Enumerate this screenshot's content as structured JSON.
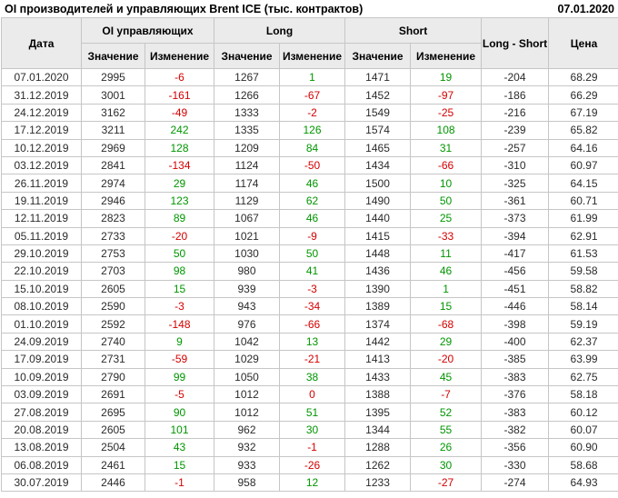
{
  "report": {
    "title": "OI производителей и управляющих Brent ICE (тыс. контрактов)",
    "as_of_date": "07.01.2020"
  },
  "colors": {
    "positive_change": "#009600",
    "negative_change": "#d40000",
    "header_background": "#ebebeb",
    "grid_border": "#c6c6c6"
  },
  "chart_data": {
    "type": "table",
    "title": "OI производителей и управляющих Brent ICE (тыс. контрактов)",
    "as_of_date": "07.01.2020",
    "headers": {
      "date": "Дата",
      "oi_group": "OI управляющих",
      "long_group": "Long",
      "short_group": "Short",
      "long_short": "Long - Short",
      "price": "Цена",
      "value": "Значение",
      "change": "Изменение"
    },
    "columns": [
      "Дата",
      "OI управляющих / Значение",
      "OI управляющих / Изменение",
      "Long / Значение",
      "Long / Изменение",
      "Short / Значение",
      "Short / Изменение",
      "Long - Short",
      "Цена"
    ],
    "rows": [
      [
        "07.01.2020",
        "2995",
        "-6",
        "1267",
        "1",
        "1471",
        "19",
        "-204",
        "68.29"
      ],
      [
        "31.12.2019",
        "3001",
        "-161",
        "1266",
        "-67",
        "1452",
        "-97",
        "-186",
        "66.29"
      ],
      [
        "24.12.2019",
        "3162",
        "-49",
        "1333",
        "-2",
        "1549",
        "-25",
        "-216",
        "67.19"
      ],
      [
        "17.12.2019",
        "3211",
        "242",
        "1335",
        "126",
        "1574",
        "108",
        "-239",
        "65.82"
      ],
      [
        "10.12.2019",
        "2969",
        "128",
        "1209",
        "84",
        "1465",
        "31",
        "-257",
        "64.16"
      ],
      [
        "03.12.2019",
        "2841",
        "-134",
        "1124",
        "-50",
        "1434",
        "-66",
        "-310",
        "60.97"
      ],
      [
        "26.11.2019",
        "2974",
        "29",
        "1174",
        "46",
        "1500",
        "10",
        "-325",
        "64.15"
      ],
      [
        "19.11.2019",
        "2946",
        "123",
        "1129",
        "62",
        "1490",
        "50",
        "-361",
        "60.71"
      ],
      [
        "12.11.2019",
        "2823",
        "89",
        "1067",
        "46",
        "1440",
        "25",
        "-373",
        "61.99"
      ],
      [
        "05.11.2019",
        "2733",
        "-20",
        "1021",
        "-9",
        "1415",
        "-33",
        "-394",
        "62.91"
      ],
      [
        "29.10.2019",
        "2753",
        "50",
        "1030",
        "50",
        "1448",
        "11",
        "-417",
        "61.53"
      ],
      [
        "22.10.2019",
        "2703",
        "98",
        "980",
        "41",
        "1436",
        "46",
        "-456",
        "59.58"
      ],
      [
        "15.10.2019",
        "2605",
        "15",
        "939",
        "-3",
        "1390",
        "1",
        "-451",
        "58.82"
      ],
      [
        "08.10.2019",
        "2590",
        "-3",
        "943",
        "-34",
        "1389",
        "15",
        "-446",
        "58.14"
      ],
      [
        "01.10.2019",
        "2592",
        "-148",
        "976",
        "-66",
        "1374",
        "-68",
        "-398",
        "59.19"
      ],
      [
        "24.09.2019",
        "2740",
        "9",
        "1042",
        "13",
        "1442",
        "29",
        "-400",
        "62.37"
      ],
      [
        "17.09.2019",
        "2731",
        "-59",
        "1029",
        "-21",
        "1413",
        "-20",
        "-385",
        "63.99"
      ],
      [
        "10.09.2019",
        "2790",
        "99",
        "1050",
        "38",
        "1433",
        "45",
        "-383",
        "62.75"
      ],
      [
        "03.09.2019",
        "2691",
        "-5",
        "1012",
        "0",
        "1388",
        "-7",
        "-376",
        "58.18"
      ],
      [
        "27.08.2019",
        "2695",
        "90",
        "1012",
        "51",
        "1395",
        "52",
        "-383",
        "60.12"
      ],
      [
        "20.08.2019",
        "2605",
        "101",
        "962",
        "30",
        "1344",
        "55",
        "-382",
        "60.07"
      ],
      [
        "13.08.2019",
        "2504",
        "43",
        "932",
        "-1",
        "1288",
        "26",
        "-356",
        "60.90"
      ],
      [
        "06.08.2019",
        "2461",
        "15",
        "933",
        "-26",
        "1262",
        "30",
        "-330",
        "58.68"
      ],
      [
        "30.07.2019",
        "2446",
        "-1",
        "958",
        "12",
        "1233",
        "-27",
        "-274",
        "64.93"
      ]
    ]
  }
}
